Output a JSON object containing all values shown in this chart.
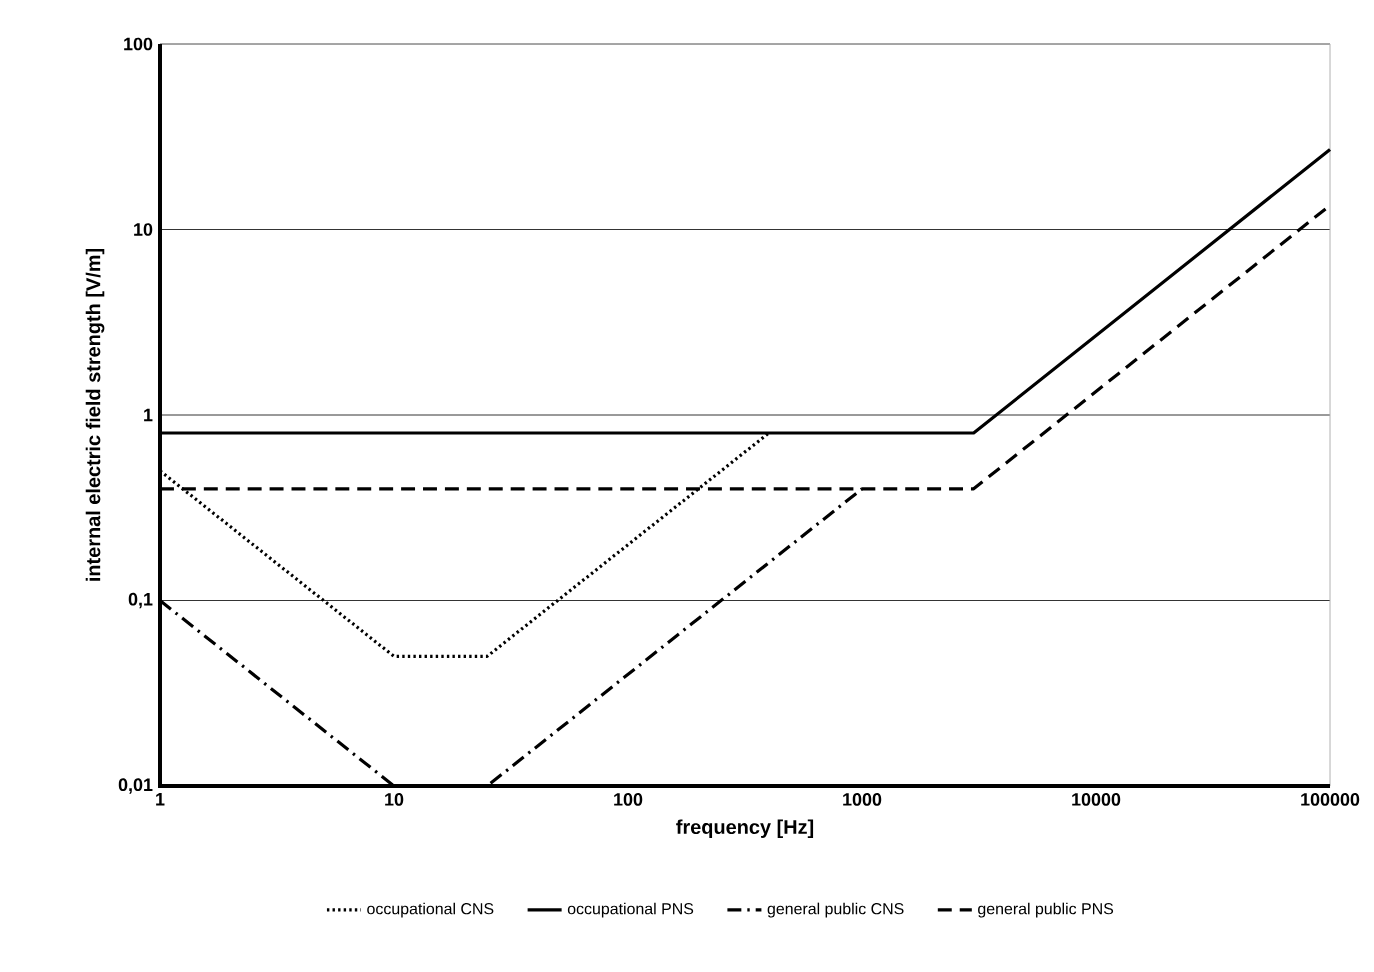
{
  "chart_data": {
    "type": "line",
    "xlabel": "frequency [Hz]",
    "ylabel": "internal electric field strength [V/m]",
    "log": "xy",
    "grid": "y",
    "legend": "bottom",
    "marker": "none",
    "xlim": [
      1,
      100000
    ],
    "ylim": [
      0.01,
      100
    ],
    "xticks": [
      1,
      10,
      100,
      1000,
      10000,
      100000
    ],
    "yticks": [
      {
        "value": 0.01,
        "label": "0,01"
      },
      {
        "value": 0.1,
        "label": "0,1"
      },
      1,
      10,
      100
    ],
    "series": [
      {
        "name": "occupational CNS",
        "color": "#000000",
        "line_style": "dotted",
        "x": [
          1,
          10,
          25,
          400
        ],
        "values": [
          0.5,
          0.05,
          0.05,
          0.8
        ]
      },
      {
        "name": "occupational PNS",
        "color": "#000000",
        "line_style": "solid",
        "x": [
          1,
          3000,
          100000
        ],
        "values": [
          0.8,
          0.8,
          27
        ]
      },
      {
        "name": "general public CNS",
        "color": "#000000",
        "line_style": "dashdotted",
        "x": [
          1,
          10,
          25,
          1000
        ],
        "values": [
          0.1,
          0.01,
          0.01,
          0.4
        ]
      },
      {
        "name": "general public PNS",
        "color": "#000000",
        "line_style": "dashed",
        "x": [
          1,
          3000,
          100000
        ],
        "values": [
          0.4,
          0.4,
          13.5
        ]
      }
    ]
  }
}
